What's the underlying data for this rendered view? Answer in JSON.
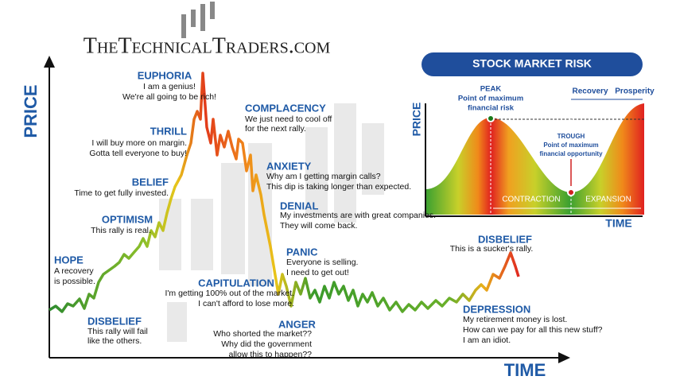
{
  "logo": "TheTechnicalTraders.com",
  "axes": {
    "y": "PRICE",
    "x": "TIME"
  },
  "stages": [
    {
      "name": "EUPHORIA",
      "text": [
        "I am a genius!",
        "We're all going to be rich!"
      ]
    },
    {
      "name": "THRILL",
      "text": [
        "I will buy more on margin.",
        "Gotta tell everyone to buy!"
      ]
    },
    {
      "name": "BELIEF",
      "text": [
        "Time to get fully invested."
      ]
    },
    {
      "name": "OPTIMISM",
      "text": [
        "This rally is real."
      ]
    },
    {
      "name": "HOPE",
      "text": [
        "A recovery",
        "is possible."
      ]
    },
    {
      "name": "DISBELIEF",
      "text": [
        "This rally will fail",
        "like the others."
      ]
    },
    {
      "name": "CAPITULATION",
      "text": [
        "I'm getting 100% out of the market.",
        "I can't afford to lose more."
      ]
    },
    {
      "name": "ANGER",
      "text": [
        "Who shorted the market??",
        "Why did the government",
        "allow this to happen??"
      ]
    },
    {
      "name": "COMPLACENCY",
      "text": [
        "We just need to cool off",
        "for the next rally."
      ]
    },
    {
      "name": "ANXIETY",
      "text": [
        "Why am I getting margin calls?",
        "This dip is taking longer than expected."
      ]
    },
    {
      "name": "DENIAL",
      "text": [
        "My investments are with great companies.",
        "They will come back."
      ]
    },
    {
      "name": "PANIC",
      "text": [
        "Everyone is selling.",
        "I need to get out!"
      ]
    },
    {
      "name": "DEPRESSION",
      "text": [
        "My retirement money is lost.",
        "How can we pay for all this new stuff?",
        "I am an idiot."
      ]
    },
    {
      "name": "DISBELIEF",
      "text": [
        "This is a sucker's rally."
      ]
    }
  ],
  "inset": {
    "title": "STOCK MARKET RISK",
    "y_label": "PRICE",
    "x_label": "TIME",
    "peak": {
      "title": "PEAK",
      "text": [
        "Point of maximum",
        "financial risk"
      ]
    },
    "trough": {
      "title": "TROUGH",
      "text": [
        "Point of maximum",
        "financial opportunity"
      ]
    },
    "phases": [
      "CONTRACTION",
      "EXPANSION",
      "Recovery",
      "Prosperity"
    ]
  }
}
